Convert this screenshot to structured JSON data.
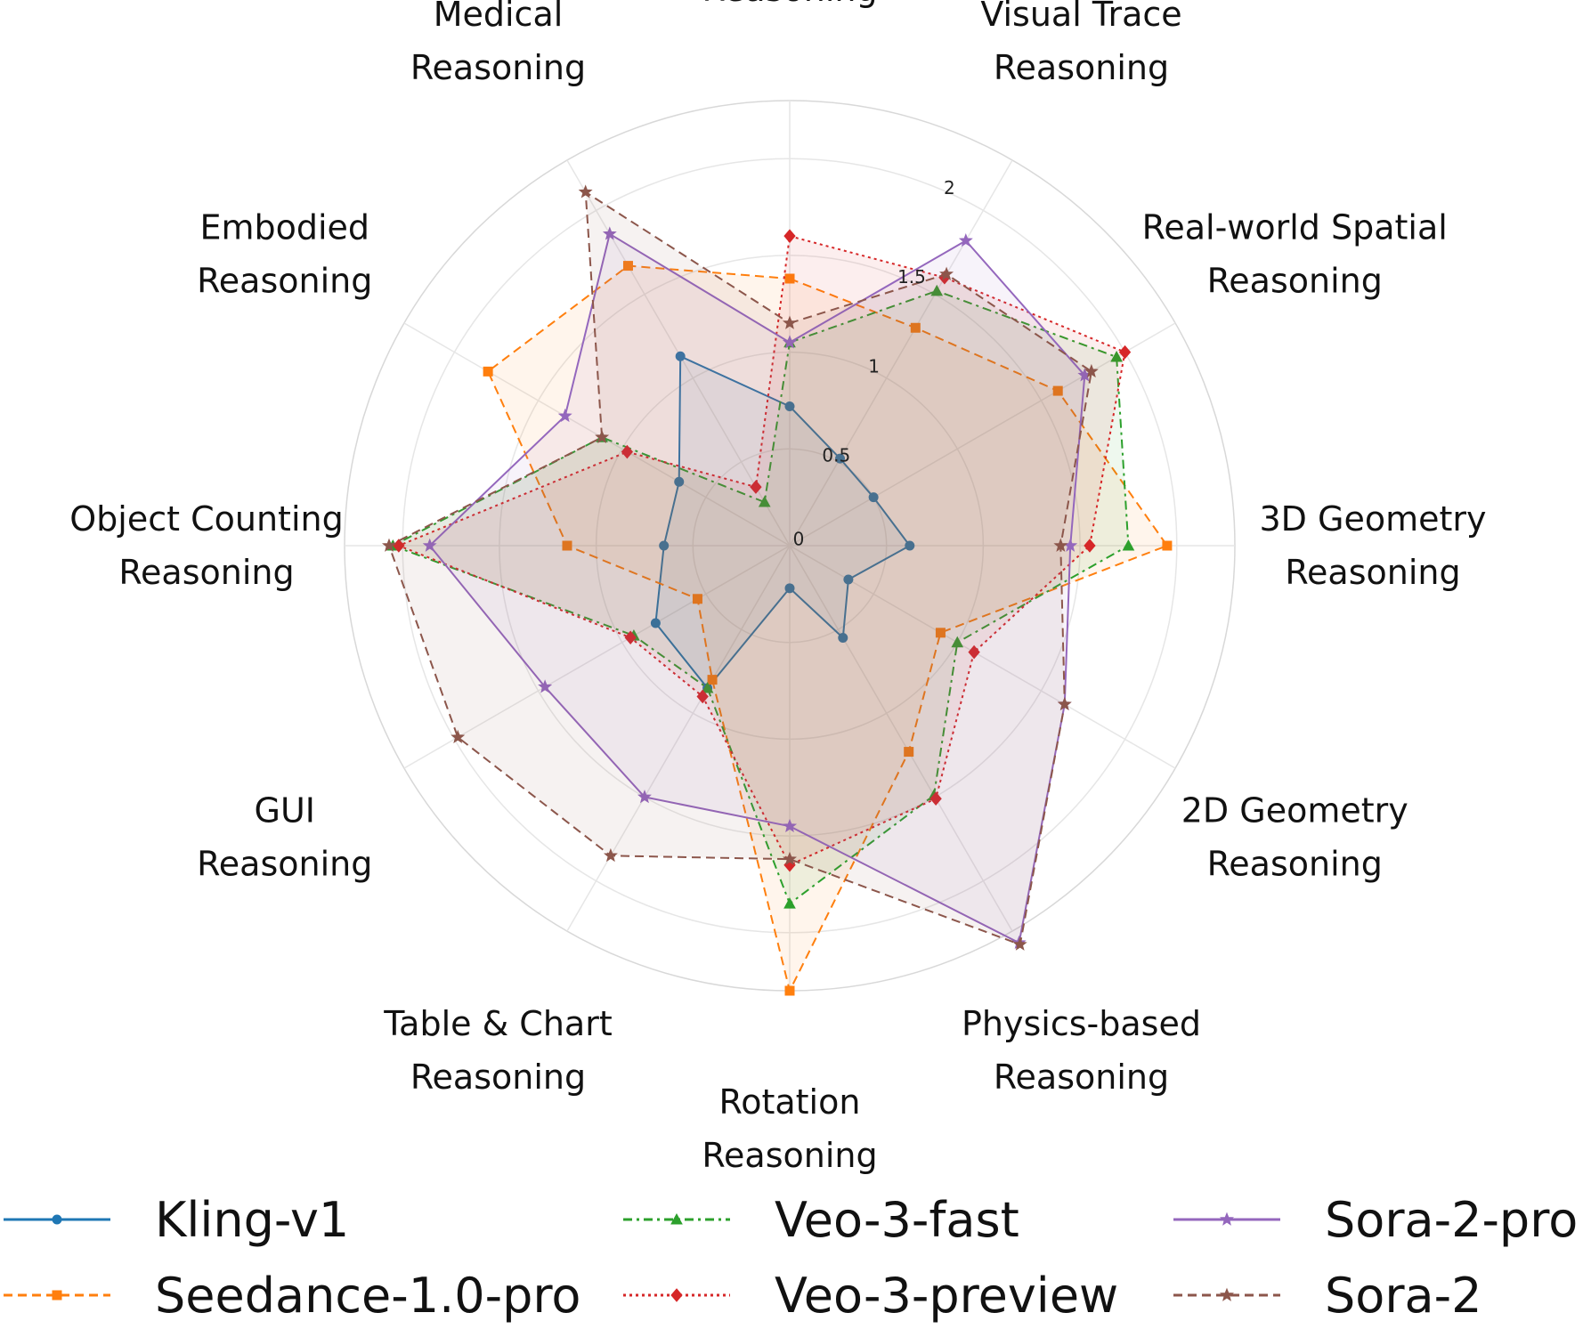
{
  "chart_data": {
    "type": "radar",
    "title": "",
    "categories": [
      "Visual Detail\nReasoning",
      "Visual Trace\nReasoning",
      "Real-world Spatial\nReasoning",
      "3D Geometry\nReasoning",
      "2D Geometry\nReasoning",
      "Physics-based\nReasoning",
      "Rotation\nReasoning",
      "Table & Chart\nReasoning",
      "GUI\nReasoning",
      "Object Counting\nReasoning",
      "Embodied\nReasoning",
      "Medical\nReasoning"
    ],
    "rlim": [
      0,
      2.3
    ],
    "r_ticks": [
      0,
      0.5,
      1,
      1.5,
      2
    ],
    "r_tick_labels": [
      "0",
      "0.5",
      "1",
      "1.5",
      "2"
    ],
    "grid": true,
    "legend_position": "bottom",
    "series": [
      {
        "name": "Kling-v1",
        "color": "#1f77b4",
        "dash": "solid",
        "marker": "circle",
        "values": [
          0.72,
          0.52,
          0.5,
          0.62,
          0.35,
          0.55,
          0.22,
          0.85,
          0.8,
          0.65,
          0.66,
          1.13
        ]
      },
      {
        "name": "Seedance-1.0-pro",
        "color": "#ff7f0e",
        "dash": "dashed",
        "marker": "square",
        "values": [
          1.38,
          1.3,
          1.6,
          1.95,
          0.9,
          1.23,
          2.3,
          0.8,
          0.55,
          1.15,
          1.8,
          1.67
        ]
      },
      {
        "name": "Veo-3-fast",
        "color": "#2ca02c",
        "dash": "dashdot",
        "marker": "triangle",
        "values": [
          1.05,
          1.52,
          1.95,
          1.75,
          1.0,
          1.49,
          1.85,
          0.85,
          0.93,
          2.05,
          1.12,
          0.26
        ]
      },
      {
        "name": "Veo-3-preview",
        "color": "#d62728",
        "dash": "dotted",
        "marker": "diamond",
        "values": [
          1.6,
          1.6,
          2.0,
          1.55,
          1.1,
          1.51,
          1.65,
          0.9,
          0.95,
          2.02,
          0.97,
          0.35
        ]
      },
      {
        "name": "Sora-2-pro",
        "color": "#9467bd",
        "dash": "solid",
        "marker": "star",
        "values": [
          1.05,
          1.82,
          1.76,
          1.45,
          1.64,
          2.37,
          1.45,
          1.5,
          1.46,
          1.86,
          1.34,
          1.86
        ]
      },
      {
        "name": "Sora-2",
        "color": "#8c564b",
        "dash": "dashed",
        "marker": "star",
        "values": [
          1.15,
          1.62,
          1.8,
          1.4,
          1.64,
          2.38,
          1.62,
          1.85,
          1.98,
          2.07,
          1.12,
          2.11
        ]
      }
    ]
  }
}
